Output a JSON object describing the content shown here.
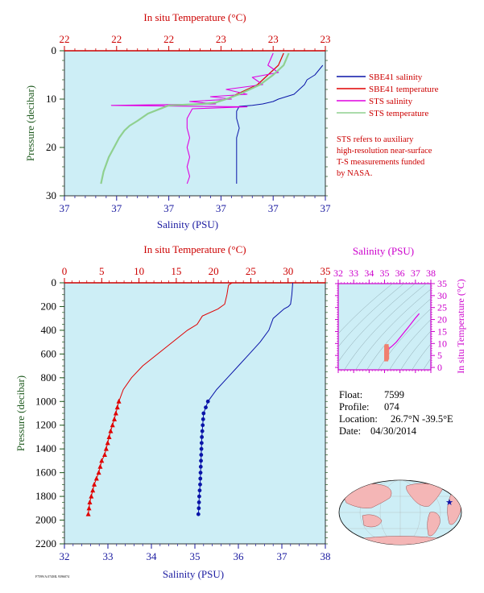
{
  "colors": {
    "salinity": "#0a14a8",
    "temperature": "#e00000",
    "sts_salinity": "#e000e0",
    "sts_temperature": "#8fd08f",
    "plot_bg": "#cdeef6",
    "axis_red": "#cc0000",
    "axis_blue": "#1a1aa0",
    "axis_green": "#1f5a1f",
    "axis_magenta": "#cc00cc"
  },
  "legend": {
    "items": [
      {
        "label": "SBE41 salinity",
        "color": "#0a14a8"
      },
      {
        "label": "SBE41 temperature",
        "color": "#e00000"
      },
      {
        "label": "STS salinity",
        "color": "#e000e0"
      },
      {
        "label": "STS temperature",
        "color": "#8fd08f"
      }
    ],
    "note": [
      "STS refers to auxiliary",
      "high-resolution near-surface",
      "T-S measurements funded",
      "by NASA."
    ]
  },
  "float_info": [
    {
      "label": "Float:",
      "value": "7599"
    },
    {
      "label": "Profile:",
      "value": "074"
    },
    {
      "label": "Location:",
      "value": "26.7°N  -39.5°E"
    },
    {
      "label": "Date:",
      "value": "04/30/2014"
    }
  ],
  "footer_code": "F7599/A.074ML 9396074",
  "chart_data": [
    {
      "id": "surface",
      "type": "line",
      "title": "",
      "top_label": "In situ Temperature (°C)",
      "bottom_label": "Salinity (PSU)",
      "ylabel": "Pressure (decibar)",
      "y_reversed": true,
      "ylim": [
        0,
        30
      ],
      "yticks": [
        0,
        10,
        20,
        30
      ],
      "temperature_ticks": [
        "22",
        "22",
        "22",
        "23",
        "23",
        "23"
      ],
      "salinity_ticks": [
        "37",
        "37",
        "37",
        "37",
        "37",
        "37"
      ],
      "grid": false,
      "series": [
        {
          "name": "SBE41 salinity",
          "axis": "salinity_frac",
          "x": [
            0.99,
            0.96,
            0.93,
            0.92,
            0.9,
            0.88,
            0.85,
            0.82,
            0.8,
            0.76,
            0.72,
            0.67,
            0.66,
            0.66,
            0.67,
            0.66,
            0.66,
            0.66,
            0.66,
            0.66
          ],
          "y": [
            3,
            5,
            6,
            7,
            8,
            9,
            9.5,
            10,
            10.5,
            11,
            11.3,
            11.5,
            12.5,
            14,
            16,
            18,
            20,
            23,
            26,
            27.5
          ]
        },
        {
          "name": "SBE41 temperature",
          "axis": "temperature_frac",
          "x": [
            0.84,
            0.82,
            0.78,
            0.74,
            0.66,
            0.62,
            0.58,
            0.53,
            0.4,
            0.32,
            0.28,
            0.25,
            0.23,
            0.21,
            0.19,
            0.17,
            0.15,
            0.14
          ],
          "y": [
            0.5,
            3,
            5,
            7,
            9,
            10,
            10.7,
            11,
            11.3,
            13,
            14.5,
            15.5,
            16.5,
            18,
            20,
            22,
            25,
            27.5
          ]
        },
        {
          "name": "STS salinity",
          "axis": "salinity_frac",
          "x": [
            0.8,
            0.78,
            0.82,
            0.72,
            0.76,
            0.62,
            0.7,
            0.56,
            0.64,
            0.48,
            0.58,
            0.18,
            0.7,
            0.49,
            0.47,
            0.47,
            0.48,
            0.47,
            0.48,
            0.47,
            0.48,
            0.47
          ],
          "y": [
            0.5,
            3,
            4.5,
            5.5,
            7,
            8,
            9,
            9.5,
            10,
            10.5,
            11,
            11.3,
            11.6,
            12,
            14,
            16,
            18,
            20,
            22,
            24,
            26,
            27.5
          ]
        },
        {
          "name": "STS temperature",
          "axis": "temperature_frac",
          "x": [
            0.86,
            0.84,
            0.8,
            0.75,
            0.67,
            0.62,
            0.58,
            0.53,
            0.4,
            0.32,
            0.28,
            0.25,
            0.23,
            0.21,
            0.19,
            0.17,
            0.15,
            0.14
          ],
          "y": [
            0.5,
            3,
            5,
            7,
            9,
            10,
            10.7,
            11,
            11.3,
            13,
            14.5,
            15.5,
            16.5,
            18,
            20,
            22,
            25,
            27.5
          ]
        }
      ]
    },
    {
      "id": "profile",
      "type": "line",
      "title": "",
      "top_label": "In situ Temperature (°C)",
      "bottom_label": "Salinity (PSU)",
      "ylabel": "Pressure (decibar)",
      "y_reversed": true,
      "ylim": [
        0,
        2200
      ],
      "yticks": [
        0,
        200,
        400,
        600,
        800,
        1000,
        1200,
        1400,
        1600,
        1800,
        2000,
        2200
      ],
      "temperature_ticks": [
        "0",
        "5",
        "10",
        "15",
        "20",
        "25",
        "30",
        "35"
      ],
      "temperature_xlim": [
        0,
        35
      ],
      "salinity_ticks": [
        "32",
        "33",
        "34",
        "35",
        "36",
        "37",
        "38"
      ],
      "salinity_xlim": [
        32,
        38
      ],
      "grid": false,
      "series": [
        {
          "name": "Temperature",
          "temperature": [
            22.5,
            22.0,
            21.8,
            21.5,
            20.6,
            18.5,
            17.8,
            16.5,
            14.5,
            12.5,
            10.5,
            9.0,
            7.9,
            7.3,
            6.7,
            6.2,
            5.8,
            5.4,
            5.0,
            4.6,
            4.3,
            4.0,
            3.8,
            3.6,
            3.4,
            3.2
          ],
          "pressure": [
            0,
            20,
            100,
            180,
            220,
            280,
            350,
            400,
            500,
            600,
            700,
            800,
            900,
            1000,
            1150,
            1250,
            1350,
            1450,
            1500,
            1600,
            1650,
            1700,
            1750,
            1800,
            1850,
            1950
          ]
        },
        {
          "name": "Salinity",
          "salinity": [
            37.25,
            37.23,
            37.2,
            37.15,
            37.05,
            36.8,
            36.7,
            36.5,
            36.25,
            36.0,
            35.75,
            35.5,
            35.3,
            35.2,
            35.18,
            35.16,
            35.15,
            35.14,
            35.13,
            35.12,
            35.11,
            35.1,
            35.09,
            35.08
          ],
          "pressure": [
            0,
            100,
            180,
            200,
            220,
            300,
            400,
            500,
            600,
            700,
            800,
            900,
            1000,
            1100,
            1200,
            1300,
            1400,
            1500,
            1600,
            1700,
            1750,
            1800,
            1900,
            1950
          ]
        }
      ],
      "marker_pressures_temperature": [
        1000,
        1050,
        1100,
        1150,
        1200,
        1250,
        1300,
        1350,
        1400,
        1450,
        1500,
        1550,
        1600,
        1650,
        1700,
        1750,
        1800,
        1850,
        1900,
        1950
      ],
      "marker_pressures_salinity": [
        1000,
        1050,
        1100,
        1150,
        1200,
        1250,
        1300,
        1350,
        1400,
        1450,
        1500,
        1550,
        1600,
        1650,
        1700,
        1750,
        1800,
        1850,
        1900,
        1950
      ]
    },
    {
      "id": "ts_diagram",
      "type": "line",
      "title": "",
      "top_label": "Salinity (PSU)",
      "right_label": "In situ Temperature (°C)",
      "xlim": [
        32,
        38
      ],
      "ylim": [
        -1,
        35
      ],
      "xticks": [
        "32",
        "33",
        "34",
        "35",
        "36",
        "37",
        "38"
      ],
      "yticks": [
        "0",
        "5",
        "10",
        "15",
        "20",
        "25",
        "30",
        "35"
      ],
      "series": [
        {
          "name": "T-S",
          "salinity": [
            37.25,
            37.0,
            36.75,
            36.5,
            36.25,
            36.0,
            35.75,
            35.5,
            35.3,
            35.2,
            35.1,
            35.08
          ],
          "temperature": [
            22.5,
            20.6,
            18.5,
            16.5,
            14.5,
            12.5,
            10.5,
            9.0,
            7.9,
            6.2,
            4.3,
            3.2
          ]
        }
      ]
    }
  ],
  "map": {
    "marker_lat": 26.7,
    "marker_lon": -39.5
  }
}
